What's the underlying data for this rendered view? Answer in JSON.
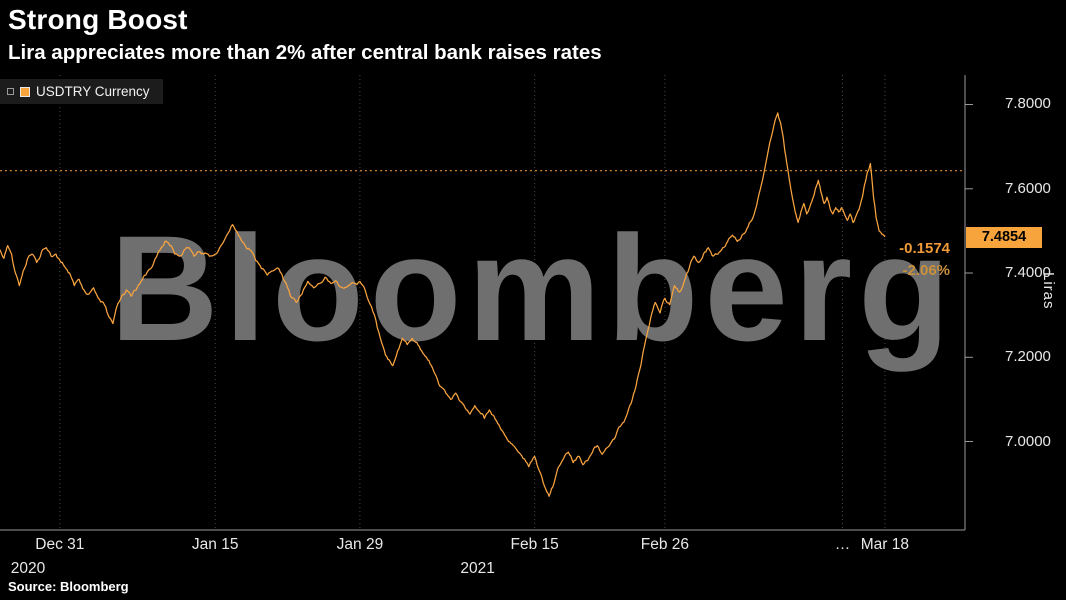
{
  "title": "Strong Boost",
  "subtitle": "Lira appreciates more than 2% after central bank raises rates",
  "watermark": "Bloomberg",
  "source": "Source: Bloomberg",
  "legend": {
    "label": "USDTRY Currency",
    "marker_color": "#F7A43C"
  },
  "quote": {
    "last_label": "7.4854",
    "net_change": "-0.1574",
    "pct_change": "-2.06%"
  },
  "y_axis_unit": "Liras",
  "colors": {
    "background": "#000000",
    "line": "#F9A43F",
    "ref_line": "#E08A2E",
    "grid": "#4A4A4A",
    "axis": "#9A9A9A",
    "badge_bg": "#F7A43C",
    "badge_text": "#000000",
    "net_change": "#F09A38",
    "pct_change": "#C9913C",
    "watermark": "#6F6F6F",
    "text": "#FFFFFF"
  },
  "chart_data": {
    "type": "line",
    "title": "Strong Boost",
    "series_name": "USDTRY Currency",
    "xlabel": "",
    "ylabel": "Liras",
    "ylim": [
      6.79,
      7.87
    ],
    "grid": "vertical-dotted",
    "legend_position": "top-left",
    "prev_close": 7.6428,
    "last_value": 7.4854,
    "net_change": -0.1574,
    "pct_change": -2.06,
    "y_ticks": [
      {
        "v": 7.0,
        "label": "7.0000"
      },
      {
        "v": 7.2,
        "label": "7.2000"
      },
      {
        "v": 7.4,
        "label": "7.4000"
      },
      {
        "v": 7.6,
        "label": "7.6000"
      },
      {
        "v": 7.8,
        "label": "7.8000"
      }
    ],
    "x_ticks": [
      {
        "f": 0.062,
        "label": "Dec 31"
      },
      {
        "f": 0.223,
        "label": "Jan 15"
      },
      {
        "f": 0.373,
        "label": "Jan 29"
      },
      {
        "f": 0.554,
        "label": "Feb 15"
      },
      {
        "f": 0.689,
        "label": "Feb 26"
      },
      {
        "f": 0.873,
        "label": "…"
      },
      {
        "f": 0.917,
        "label": "Mar 18"
      }
    ],
    "year_labels": [
      {
        "f": 0.029,
        "label": "2020"
      },
      {
        "f": 0.495,
        "label": "2021"
      }
    ],
    "points": [
      [
        0,
        7.455
      ],
      [
        0.004,
        7.435
      ],
      [
        0.008,
        7.465
      ],
      [
        0.012,
        7.445
      ],
      [
        0.016,
        7.4
      ],
      [
        0.02,
        7.37
      ],
      [
        0.024,
        7.405
      ],
      [
        0.028,
        7.43
      ],
      [
        0.033,
        7.445
      ],
      [
        0.038,
        7.425
      ],
      [
        0.043,
        7.45
      ],
      [
        0.048,
        7.46
      ],
      [
        0.053,
        7.44
      ],
      [
        0.058,
        7.445
      ],
      [
        0.062,
        7.43
      ],
      [
        0.067,
        7.415
      ],
      [
        0.072,
        7.4
      ],
      [
        0.077,
        7.37
      ],
      [
        0.082,
        7.385
      ],
      [
        0.087,
        7.36
      ],
      [
        0.092,
        7.35
      ],
      [
        0.097,
        7.365
      ],
      [
        0.102,
        7.34
      ],
      [
        0.107,
        7.33
      ],
      [
        0.112,
        7.3
      ],
      [
        0.117,
        7.28
      ],
      [
        0.121,
        7.32
      ],
      [
        0.126,
        7.345
      ],
      [
        0.131,
        7.36
      ],
      [
        0.136,
        7.345
      ],
      [
        0.141,
        7.36
      ],
      [
        0.146,
        7.38
      ],
      [
        0.151,
        7.395
      ],
      [
        0.156,
        7.41
      ],
      [
        0.161,
        7.435
      ],
      [
        0.166,
        7.455
      ],
      [
        0.171,
        7.475
      ],
      [
        0.176,
        7.465
      ],
      [
        0.181,
        7.445
      ],
      [
        0.186,
        7.44
      ],
      [
        0.191,
        7.455
      ],
      [
        0.196,
        7.46
      ],
      [
        0.201,
        7.44
      ],
      [
        0.206,
        7.45
      ],
      [
        0.211,
        7.445
      ],
      [
        0.217,
        7.44
      ],
      [
        0.223,
        7.445
      ],
      [
        0.229,
        7.465
      ],
      [
        0.235,
        7.49
      ],
      [
        0.241,
        7.515
      ],
      [
        0.247,
        7.49
      ],
      [
        0.253,
        7.47
      ],
      [
        0.259,
        7.455
      ],
      [
        0.265,
        7.43
      ],
      [
        0.271,
        7.41
      ],
      [
        0.277,
        7.395
      ],
      [
        0.283,
        7.405
      ],
      [
        0.289,
        7.41
      ],
      [
        0.295,
        7.38
      ],
      [
        0.301,
        7.345
      ],
      [
        0.307,
        7.33
      ],
      [
        0.313,
        7.35
      ],
      [
        0.319,
        7.38
      ],
      [
        0.325,
        7.365
      ],
      [
        0.331,
        7.375
      ],
      [
        0.337,
        7.39
      ],
      [
        0.343,
        7.375
      ],
      [
        0.349,
        7.38
      ],
      [
        0.355,
        7.365
      ],
      [
        0.361,
        7.37
      ],
      [
        0.367,
        7.375
      ],
      [
        0.373,
        7.38
      ],
      [
        0.379,
        7.355
      ],
      [
        0.385,
        7.32
      ],
      [
        0.391,
        7.27
      ],
      [
        0.397,
        7.225
      ],
      [
        0.402,
        7.195
      ],
      [
        0.407,
        7.18
      ],
      [
        0.412,
        7.215
      ],
      [
        0.417,
        7.245
      ],
      [
        0.422,
        7.23
      ],
      [
        0.427,
        7.245
      ],
      [
        0.432,
        7.235
      ],
      [
        0.437,
        7.215
      ],
      [
        0.442,
        7.2
      ],
      [
        0.447,
        7.18
      ],
      [
        0.452,
        7.155
      ],
      [
        0.457,
        7.13
      ],
      [
        0.462,
        7.115
      ],
      [
        0.467,
        7.1
      ],
      [
        0.472,
        7.115
      ],
      [
        0.477,
        7.095
      ],
      [
        0.482,
        7.08
      ],
      [
        0.487,
        7.065
      ],
      [
        0.492,
        7.085
      ],
      [
        0.497,
        7.07
      ],
      [
        0.502,
        7.055
      ],
      [
        0.507,
        7.075
      ],
      [
        0.512,
        7.06
      ],
      [
        0.517,
        7.04
      ],
      [
        0.522,
        7.02
      ],
      [
        0.527,
        7.0
      ],
      [
        0.532,
        6.99
      ],
      [
        0.537,
        6.975
      ],
      [
        0.542,
        6.96
      ],
      [
        0.548,
        6.94
      ],
      [
        0.554,
        6.965
      ],
      [
        0.559,
        6.93
      ],
      [
        0.564,
        6.895
      ],
      [
        0.569,
        6.87
      ],
      [
        0.574,
        6.9
      ],
      [
        0.579,
        6.94
      ],
      [
        0.584,
        6.96
      ],
      [
        0.589,
        6.975
      ],
      [
        0.594,
        6.95
      ],
      [
        0.599,
        6.965
      ],
      [
        0.604,
        6.945
      ],
      [
        0.609,
        6.955
      ],
      [
        0.614,
        6.975
      ],
      [
        0.619,
        6.99
      ],
      [
        0.624,
        6.97
      ],
      [
        0.629,
        6.985
      ],
      [
        0.634,
        7.0
      ],
      [
        0.639,
        7.02
      ],
      [
        0.644,
        7.04
      ],
      [
        0.649,
        7.06
      ],
      [
        0.654,
        7.09
      ],
      [
        0.659,
        7.13
      ],
      [
        0.664,
        7.18
      ],
      [
        0.669,
        7.24
      ],
      [
        0.674,
        7.29
      ],
      [
        0.679,
        7.33
      ],
      [
        0.684,
        7.305
      ],
      [
        0.689,
        7.34
      ],
      [
        0.694,
        7.325
      ],
      [
        0.699,
        7.37
      ],
      [
        0.704,
        7.355
      ],
      [
        0.709,
        7.38
      ],
      [
        0.714,
        7.41
      ],
      [
        0.719,
        7.44
      ],
      [
        0.724,
        7.425
      ],
      [
        0.729,
        7.445
      ],
      [
        0.734,
        7.46
      ],
      [
        0.739,
        7.44
      ],
      [
        0.744,
        7.445
      ],
      [
        0.749,
        7.46
      ],
      [
        0.754,
        7.475
      ],
      [
        0.759,
        7.49
      ],
      [
        0.764,
        7.475
      ],
      [
        0.769,
        7.49
      ],
      [
        0.774,
        7.505
      ],
      [
        0.779,
        7.525
      ],
      [
        0.784,
        7.56
      ],
      [
        0.789,
        7.61
      ],
      [
        0.794,
        7.665
      ],
      [
        0.799,
        7.72
      ],
      [
        0.803,
        7.76
      ],
      [
        0.806,
        7.78
      ],
      [
        0.809,
        7.755
      ],
      [
        0.812,
        7.715
      ],
      [
        0.815,
        7.665
      ],
      [
        0.818,
        7.62
      ],
      [
        0.821,
        7.58
      ],
      [
        0.824,
        7.545
      ],
      [
        0.827,
        7.52
      ],
      [
        0.83,
        7.545
      ],
      [
        0.833,
        7.565
      ],
      [
        0.836,
        7.54
      ],
      [
        0.839,
        7.555
      ],
      [
        0.842,
        7.575
      ],
      [
        0.845,
        7.6
      ],
      [
        0.848,
        7.62
      ],
      [
        0.851,
        7.59
      ],
      [
        0.854,
        7.565
      ],
      [
        0.857,
        7.58
      ],
      [
        0.86,
        7.555
      ],
      [
        0.863,
        7.54
      ],
      [
        0.866,
        7.555
      ],
      [
        0.869,
        7.545
      ],
      [
        0.872,
        7.555
      ],
      [
        0.875,
        7.54
      ],
      [
        0.878,
        7.525
      ],
      [
        0.881,
        7.54
      ],
      [
        0.884,
        7.52
      ],
      [
        0.887,
        7.535
      ],
      [
        0.89,
        7.55
      ],
      [
        0.893,
        7.575
      ],
      [
        0.896,
        7.61
      ],
      [
        0.899,
        7.64
      ],
      [
        0.902,
        7.66
      ],
      [
        0.905,
        7.585
      ],
      [
        0.908,
        7.53
      ],
      [
        0.911,
        7.5
      ],
      [
        0.914,
        7.492
      ],
      [
        0.917,
        7.4854
      ]
    ]
  }
}
